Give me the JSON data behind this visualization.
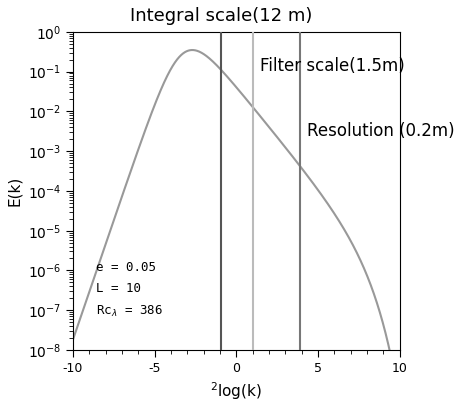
{
  "title": "Integral scale(12 m)",
  "filter_label": "Filter scale(1.5m)",
  "resolution_label": "Resolution (0.2m)",
  "xlabel": "$^{2}$log(k)",
  "ylabel": "E(k)",
  "xlim": [
    -10,
    10
  ],
  "ylim_bottom": -8,
  "ylim_top": 0,
  "vline_integral": -0.93,
  "vline_filter": 1.0,
  "vline_resolution": 3.9,
  "vline_integral_color": "#555555",
  "vline_filter_color": "#bbbbbb",
  "vline_resolution_color": "#777777",
  "curve_color": "#999999",
  "e": 0.05,
  "L_val": 10,
  "Re_lambda": 386,
  "title_fontsize": 13,
  "label_fontsize": 11,
  "annotation_fontsize": 9,
  "figsize": [
    4.54,
    4.09
  ],
  "dpi": 100
}
